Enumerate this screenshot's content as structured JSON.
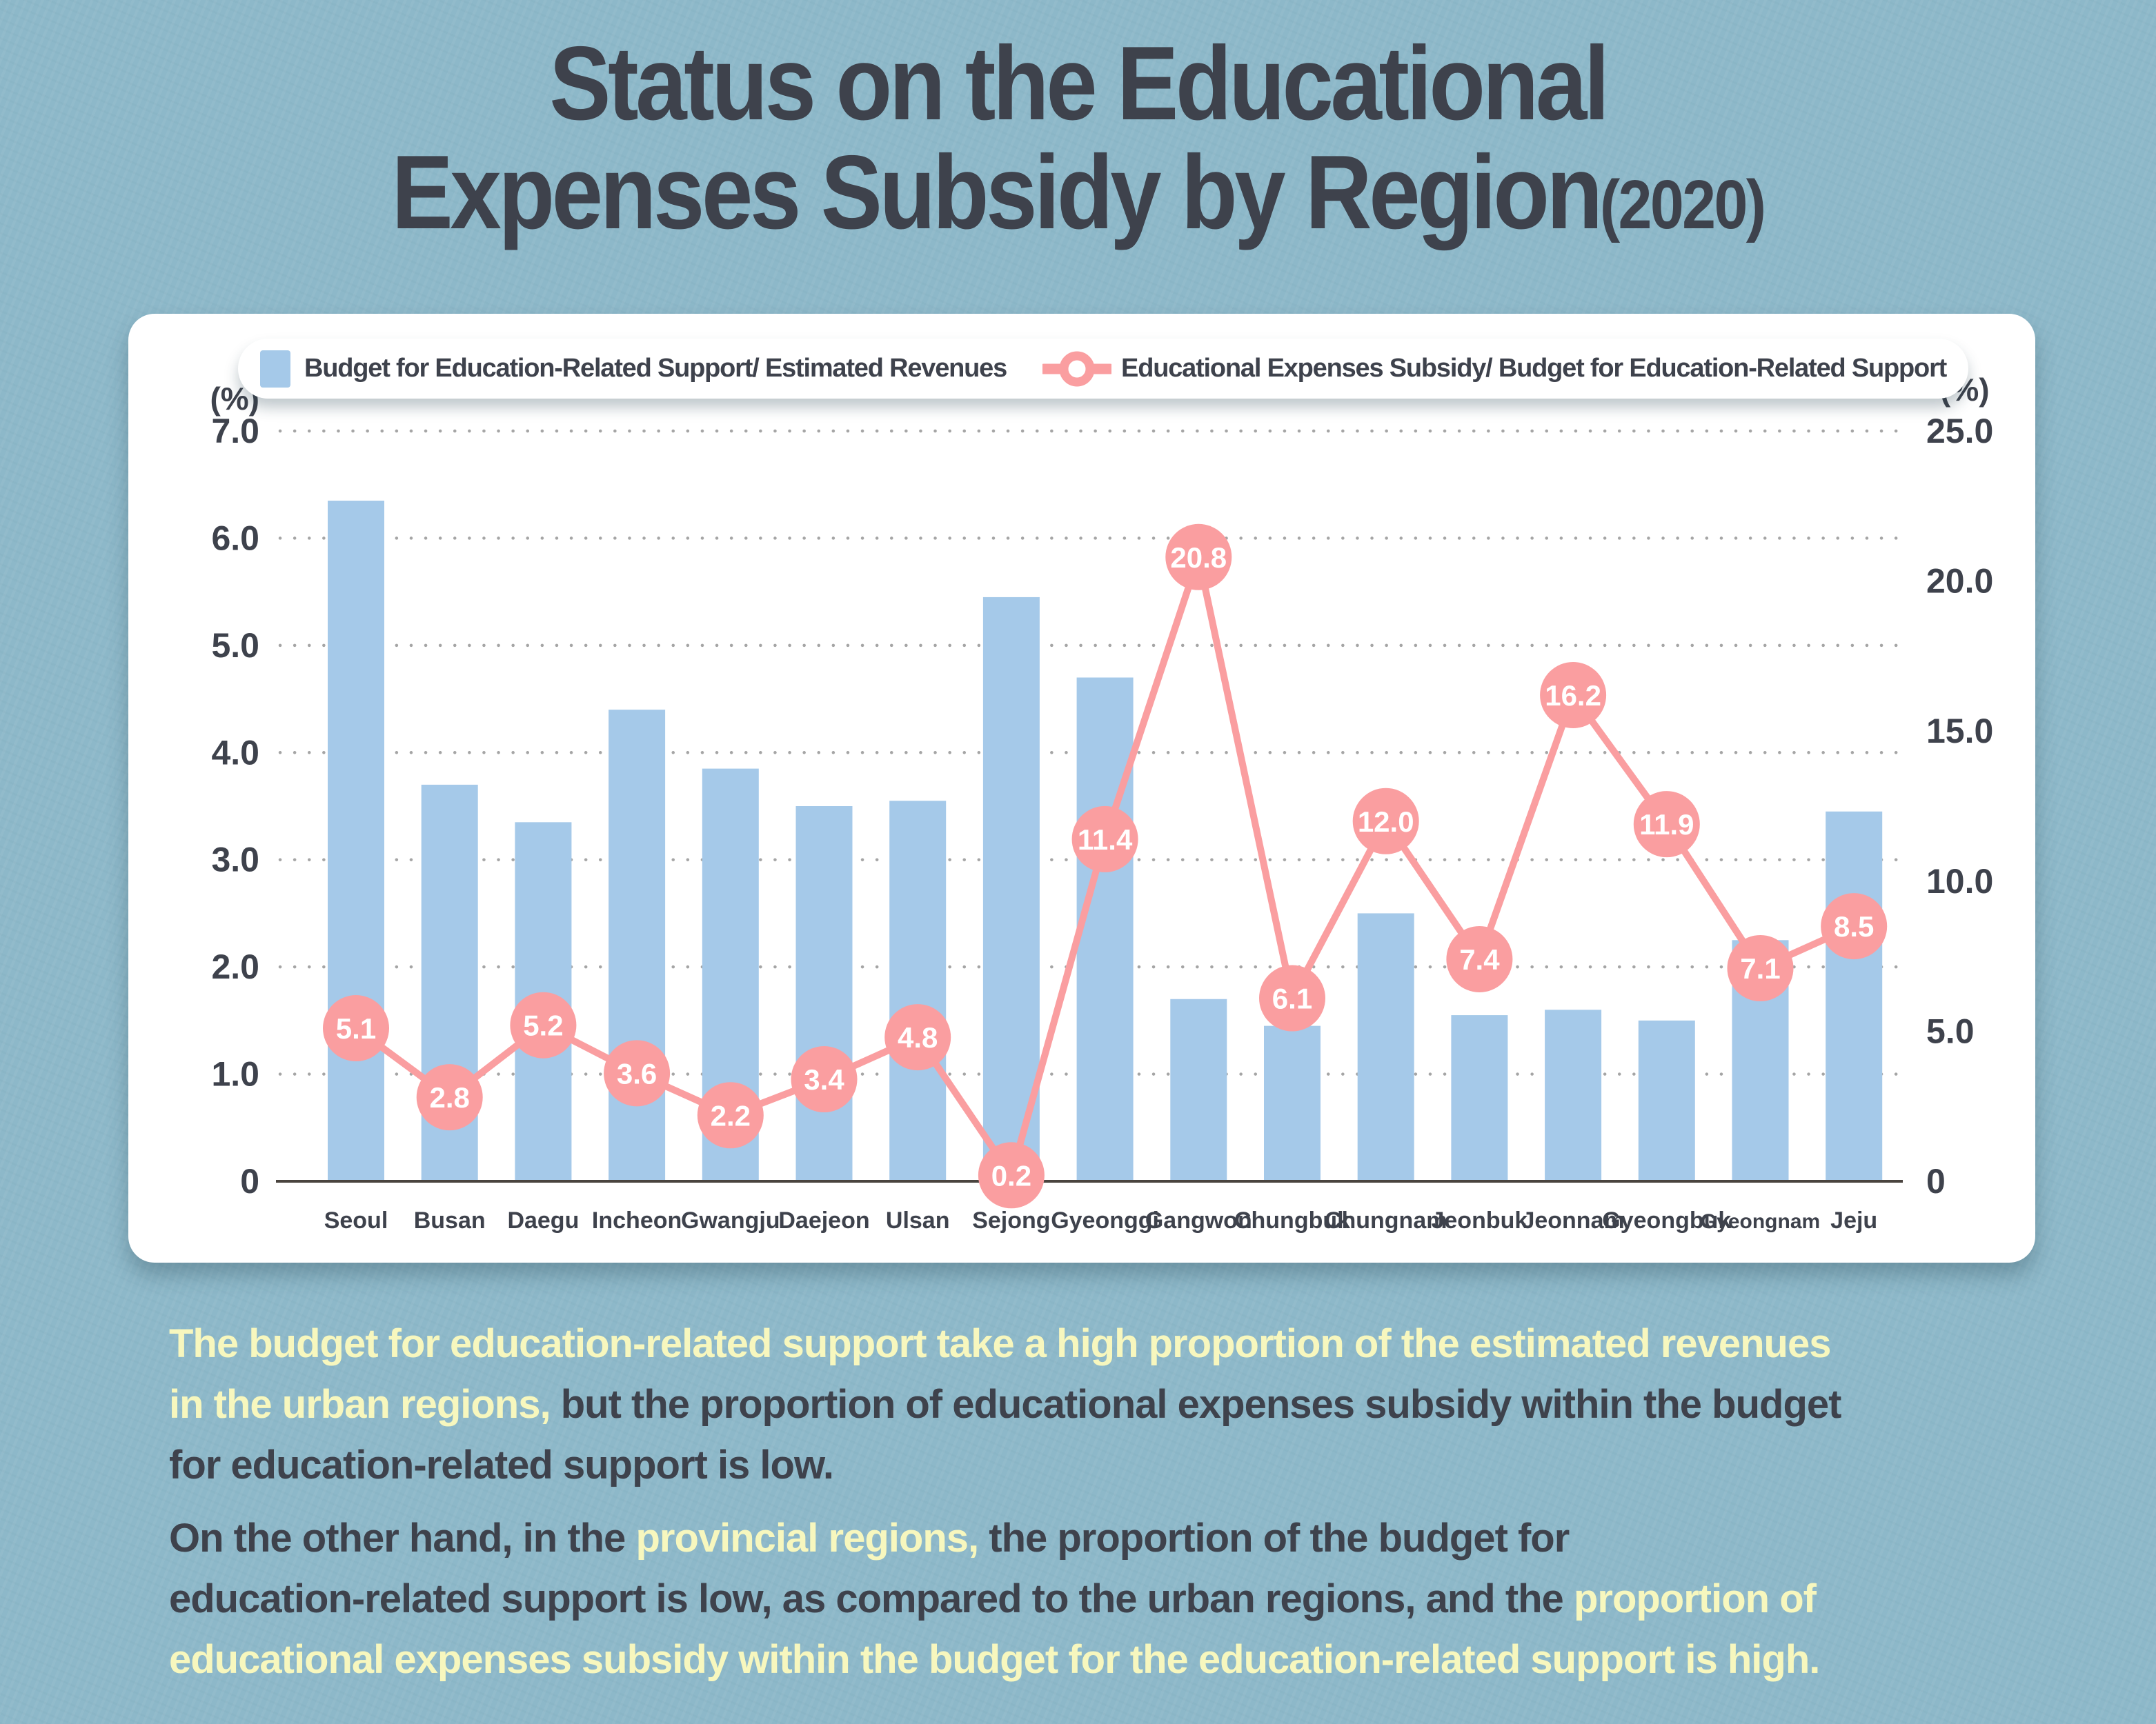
{
  "page": {
    "bg_color": "#8db8c9",
    "card_color": "#ffffff",
    "dark_text_color": "#3e424c",
    "highlight_yellow_color": "#f7f7be"
  },
  "title": {
    "line1": "Status on the Educational",
    "line2": "Expenses Subsidy by Region",
    "year_suffix": "(2020)"
  },
  "legend": {
    "items": [
      {
        "marker": "bar-swatch",
        "color": "#a5c9e9",
        "label": "Budget for Education-Related Support/ Estimated Revenues"
      },
      {
        "marker": "line-ring",
        "color": "#fa9ea0",
        "label": "Educational Expenses Subsidy/ Budget for Education-Related Support"
      }
    ]
  },
  "chart_data": {
    "type": "bar+line combo",
    "grid": "dotted horizontal gridlines on left-axis ticks",
    "legend_position": "top inside card",
    "categories": [
      "Seoul",
      "Busan",
      "Daegu",
      "Incheon",
      "Gwangju",
      "Daejeon",
      "Ulsan",
      "Sejong",
      "Gyeonggi",
      "Gangwon",
      "Chungbuk",
      "Chungnam",
      "Jeonbuk",
      "Jeonnam",
      "Gyeongbuk",
      "Gyeongnam",
      "Jeju"
    ],
    "series": [
      {
        "name": "Budget for Education-Related Support/ Estimated Revenues",
        "type": "bar",
        "axis": "left",
        "color": "#a5c9e9",
        "values": [
          6.35,
          3.7,
          3.35,
          4.4,
          3.85,
          3.5,
          3.55,
          5.45,
          4.7,
          1.7,
          1.45,
          2.5,
          1.55,
          1.6,
          1.5,
          2.25,
          3.45
        ]
      },
      {
        "name": "Educational Expenses Subsidy/ Budget for Education-Related Support",
        "type": "line",
        "axis": "right",
        "color": "#fa9ea0",
        "point_label_color": "#ffffff",
        "values": [
          5.1,
          2.8,
          5.2,
          3.6,
          2.2,
          3.4,
          4.8,
          0.2,
          11.4,
          20.8,
          6.1,
          12.0,
          7.4,
          16.2,
          11.9,
          7.1,
          8.5
        ]
      }
    ],
    "left_axis": {
      "unit": "(%)",
      "min": 0,
      "max": 7,
      "tick_labels": [
        "7.0",
        "6.0",
        "5.0",
        "4.0",
        "3.0",
        "2.0",
        "1.0",
        "0"
      ]
    },
    "right_axis": {
      "unit": "(%)",
      "min": 0,
      "max": 25,
      "tick_labels": [
        "25.0",
        "20.0",
        "15.0",
        "10.0",
        "5.0",
        "0"
      ]
    },
    "axis_line_color": "#4a443f",
    "grid_dot_color": "#8f8f8f",
    "tick_text_color": "#3e424c"
  },
  "footer": {
    "paragraphs": [
      {
        "lines": [
          [
            {
              "tone": "yellow",
              "text": "The budget for education-related support take a high proportion of the estimated revenues"
            }
          ],
          [
            {
              "tone": "yellow",
              "text": "in the urban regions, "
            },
            {
              "tone": "dark",
              "text": "but the proportion of educational expenses subsidy within the budget"
            }
          ],
          [
            {
              "tone": "dark",
              "text": "for education-related support is low."
            }
          ]
        ]
      },
      {
        "lines": [
          [
            {
              "tone": "dark",
              "text": "On the other hand, in the "
            },
            {
              "tone": "yellow",
              "text": "provincial regions, "
            },
            {
              "tone": "dark",
              "text": "the proportion of the budget for"
            }
          ],
          [
            {
              "tone": "dark",
              "text": "education-related support is low, as compared to the urban regions, and the "
            },
            {
              "tone": "yellow",
              "text": "proportion of"
            }
          ],
          [
            {
              "tone": "yellow",
              "text": "educational expenses subsidy within the budget for the education-related support is high."
            }
          ]
        ]
      }
    ]
  }
}
